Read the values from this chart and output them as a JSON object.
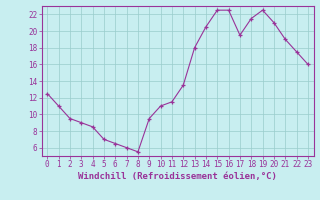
{
  "x": [
    0,
    1,
    2,
    3,
    4,
    5,
    6,
    7,
    8,
    9,
    10,
    11,
    12,
    13,
    14,
    15,
    16,
    17,
    18,
    19,
    20,
    21,
    22,
    23
  ],
  "y": [
    12.5,
    11.0,
    9.5,
    9.0,
    8.5,
    7.0,
    6.5,
    6.0,
    5.5,
    9.5,
    11.0,
    11.5,
    13.5,
    18.0,
    20.5,
    22.5,
    22.5,
    19.5,
    21.5,
    22.5,
    21.0,
    19.0,
    17.5,
    16.0
  ],
  "line_color": "#993399",
  "marker_color": "#993399",
  "bg_color": "#c8eef0",
  "grid_color": "#99cccc",
  "axis_color": "#993399",
  "tick_color": "#993399",
  "border_color": "#993399",
  "xlabel": "Windchill (Refroidissement éolien,°C)",
  "ylabel": "",
  "title": "",
  "xlim": [
    -0.5,
    23.5
  ],
  "ylim": [
    5.0,
    23.0
  ],
  "yticks": [
    6,
    8,
    10,
    12,
    14,
    16,
    18,
    20,
    22
  ],
  "xticks": [
    0,
    1,
    2,
    3,
    4,
    5,
    6,
    7,
    8,
    9,
    10,
    11,
    12,
    13,
    14,
    15,
    16,
    17,
    18,
    19,
    20,
    21,
    22,
    23
  ],
  "tick_fontsize": 5.5,
  "xlabel_fontsize": 6.5
}
